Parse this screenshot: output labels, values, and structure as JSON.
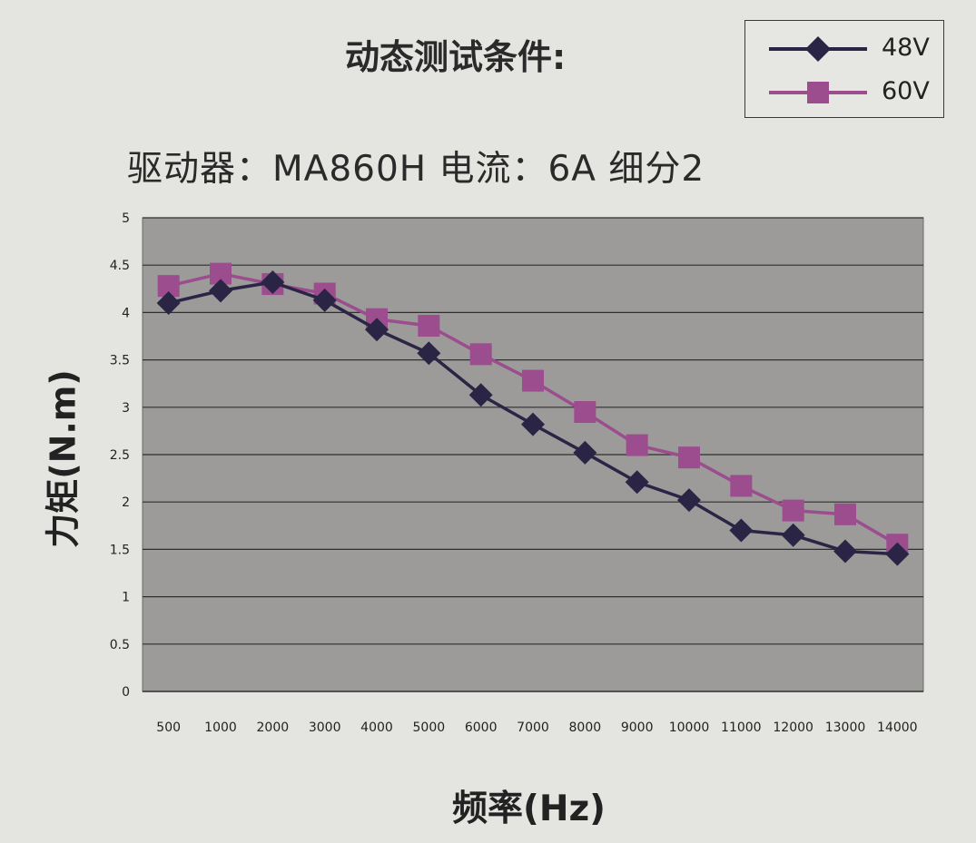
{
  "chart_data": {
    "type": "line",
    "title": "动态测试条件:",
    "subtitle": "驱动器：MA860H  电流：6A  细分2",
    "xlabel": "频率(Hz)",
    "ylabel": "力矩(N.m)",
    "categories": [
      "500",
      "1000",
      "2000",
      "3000",
      "4000",
      "5000",
      "6000",
      "7000",
      "8000",
      "9000",
      "10000",
      "11000",
      "12000",
      "13000",
      "14000"
    ],
    "ylim": [
      0,
      5
    ],
    "yticks": [
      "0",
      "0.5",
      "1",
      "1.5",
      "2",
      "2.5",
      "3",
      "3.5",
      "4",
      "4.5",
      "5"
    ],
    "grid": true,
    "legend_position": "top-right",
    "series": [
      {
        "name": "48V",
        "color": "#2b2545",
        "marker": "diamond",
        "values": [
          4.1,
          4.23,
          4.32,
          4.13,
          3.82,
          3.57,
          3.13,
          2.82,
          2.52,
          2.21,
          2.02,
          1.7,
          1.65,
          1.48,
          1.45
        ]
      },
      {
        "name": "60V",
        "color": "#9b4d8e",
        "marker": "square",
        "values": [
          4.28,
          4.41,
          4.3,
          4.2,
          3.93,
          3.86,
          3.56,
          3.28,
          2.95,
          2.6,
          2.47,
          2.17,
          1.91,
          1.87,
          1.55
        ]
      }
    ]
  }
}
